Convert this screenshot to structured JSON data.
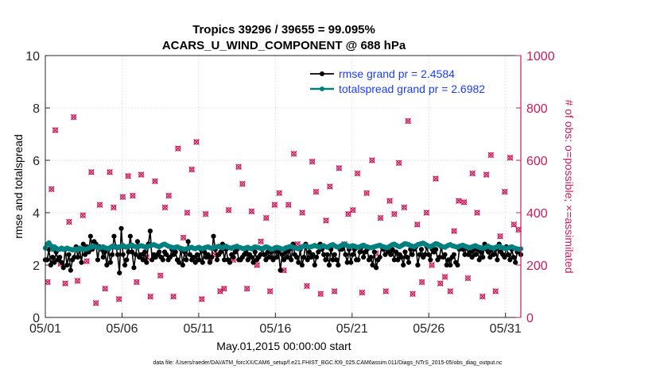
{
  "chart_data": {
    "type": "line",
    "title": "Tropics 39296 / 39655 = 99.095%",
    "subtitle": "ACARS_U_WIND_COMPONENT @ 688 hPa",
    "xlabel": "May.01,2015 00:00:00 start",
    "ylabel": "rmse and totalspread",
    "y2label": "# of obs: o=possible; ×=assimilated",
    "footnote": "data file: /Users/raeder/DAI/ATM_forcXX/CAM6_setup/f.e21.FHIST_BGC.f09_025.CAM6assim.011/Diags_NTrS_2015-05/obs_diag_output.nc",
    "xlim": [
      0,
      31
    ],
    "ylim": [
      0,
      10
    ],
    "y2lim": [
      0,
      1000
    ],
    "x_ticks": [
      0,
      5,
      10,
      15,
      20,
      25,
      30
    ],
    "x_tick_labels": [
      "05/01",
      "05/06",
      "05/11",
      "05/16",
      "05/21",
      "05/26",
      "05/31"
    ],
    "y_ticks": [
      0,
      2,
      4,
      6,
      8,
      10
    ],
    "y_tick_labels": [
      "0",
      "2",
      "4",
      "6",
      "8",
      "10"
    ],
    "y2_ticks": [
      0,
      200,
      400,
      600,
      800,
      1000
    ],
    "y2_tick_labels": [
      "0",
      "200",
      "400",
      "600",
      "800",
      "1000"
    ],
    "legend_position": "top-right",
    "colors": {
      "rmse": "#000000",
      "totalspread": "#008080",
      "obs": "#cc1a5c",
      "legend_text": "#1a3cff"
    },
    "series": [
      {
        "name": "rmse grand pr = 2.4584",
        "values": [
          2.2,
          2.2,
          2.6,
          2.0,
          2.3,
          2.1,
          2.5,
          2.2,
          2.3,
          2.1,
          1.9,
          2.6,
          2.0,
          2.4,
          1.8,
          2.2,
          2.3,
          2.7,
          2.3,
          2.6,
          2.1,
          2.8,
          2.4,
          2.7,
          2.5,
          3.1,
          2.6,
          2.9,
          2.8,
          2.2,
          2.7,
          2.6,
          2.3,
          2.5,
          2.0,
          2.6,
          2.1,
          2.4,
          3.1,
          2.7,
          2.4,
          1.7,
          3.4,
          2.4,
          2.0,
          2.2,
          2.5,
          3.1,
          2.5,
          1.9,
          2.4,
          2.9,
          2.3,
          2.4,
          2.2,
          2.5,
          2.1,
          2.8,
          3.3,
          2.2,
          2.4,
          2.3,
          2.4,
          2.5,
          2.3,
          2.2,
          2.5,
          2.4,
          2.2,
          2.3,
          2.6,
          2.4,
          2.5,
          2.2,
          2.1,
          2.6,
          2.0,
          2.5,
          2.2,
          2.9,
          2.4,
          2.2,
          2.3,
          2.1,
          2.4,
          2.2,
          2.6,
          2.1,
          2.5,
          2.3,
          2.4,
          2.1,
          2.3,
          3.1,
          2.6,
          2.2,
          2.4,
          2.5,
          2.8,
          2.2,
          2.6,
          2.2,
          2.1,
          2.4,
          2.3,
          2.5,
          2.6,
          2.2,
          2.2,
          2.3,
          2.4,
          2.5,
          2.2,
          2.4,
          2.3,
          2.1,
          2.5,
          2.2,
          2.3,
          2.4,
          2.6,
          2.4,
          2.2,
          2.5,
          2.3,
          2.5,
          2.2,
          2.6,
          2.3,
          2.5,
          1.8,
          2.4,
          2.2,
          2.5,
          2.3,
          2.6,
          2.2,
          2.8,
          2.4,
          2.3,
          2.1,
          2.6,
          2.0,
          2.3,
          2.8,
          2.2,
          2.5,
          2.3,
          2.4,
          2.0,
          2.3,
          2.5,
          2.8,
          2.6,
          2.4,
          2.2,
          2.4,
          2.0,
          2.6,
          2.2,
          2.4,
          2.2,
          2.0,
          2.6,
          2.6,
          2.8,
          2.4,
          2.1,
          2.6,
          2.1,
          2.4,
          2.6,
          2.2,
          2.2,
          2.5,
          2.7,
          2.3,
          2.5,
          2.6,
          2.2,
          2.3,
          2.0,
          2.5,
          1.9,
          2.2,
          2.3,
          2.7,
          2.6,
          2.4,
          2.6,
          2.5,
          2.4,
          2.6,
          2.2,
          2.5,
          2.2,
          2.4,
          2.3,
          2.0,
          2.5,
          2.3,
          2.1,
          2.6,
          2.4,
          2.6,
          2.7,
          2.0,
          2.4,
          2.6,
          2.3,
          2.4,
          2.7,
          2.4,
          2.2,
          2.6,
          2.5,
          2.6,
          2.2,
          2.3,
          2.7,
          2.3,
          2.4,
          2.0,
          2.2,
          2.0,
          2.3,
          2.4,
          2.1,
          2.0,
          2.6,
          2.7,
          2.6,
          2.4,
          2.7,
          2.4,
          2.5,
          2.3,
          2.6,
          2.4,
          2.6,
          2.2,
          2.5,
          2.3,
          2.8,
          2.6,
          2.5,
          2.3,
          2.6,
          2.4,
          2.6,
          2.2,
          2.8,
          2.5,
          2.4,
          2.3,
          2.7,
          2.4,
          2.2,
          2.6,
          2.3,
          2.1,
          2.5,
          2.6,
          2.4
        ]
      },
      {
        "name": "totalspread grand pr = 2.6982",
        "values": [
          2.65,
          2.8,
          2.85,
          2.75,
          2.6,
          2.7,
          2.65,
          2.6,
          2.6,
          2.65,
          2.6,
          2.62,
          2.65,
          2.62,
          2.6,
          2.58,
          2.6,
          2.62,
          2.6,
          2.65,
          2.6,
          2.62,
          2.6,
          2.62,
          2.65,
          2.68,
          2.7,
          2.72,
          2.7,
          2.68,
          2.65,
          2.67,
          2.7,
          2.66,
          2.64,
          2.62,
          2.68,
          2.72,
          2.7,
          2.68,
          2.66,
          2.7,
          2.72,
          2.75,
          2.7,
          2.68,
          2.72,
          2.74,
          2.76,
          2.72,
          2.7,
          2.68,
          2.72,
          2.74,
          2.72,
          2.7,
          2.68,
          2.72,
          2.74,
          2.76,
          2.78,
          2.75,
          2.72,
          2.7,
          2.74,
          2.78,
          2.8,
          2.76,
          2.72,
          2.7,
          2.68,
          2.66,
          2.68,
          2.7,
          2.66,
          2.64,
          2.62,
          2.6,
          2.62,
          2.64,
          2.66,
          2.68,
          2.64,
          2.62,
          2.66,
          2.68,
          2.64,
          2.62,
          2.66,
          2.68,
          2.7,
          2.66,
          2.64,
          2.66,
          2.68,
          2.7,
          2.72,
          2.68,
          2.66,
          2.7,
          2.72,
          2.68,
          2.66,
          2.64,
          2.68,
          2.7,
          2.72,
          2.68,
          2.66,
          2.64,
          2.62,
          2.66,
          2.68,
          2.64,
          2.62,
          2.66,
          2.7,
          2.68,
          2.66,
          2.64,
          2.62,
          2.66,
          2.7,
          2.68,
          2.64,
          2.6,
          2.62,
          2.66,
          2.68,
          2.66,
          2.64,
          2.6,
          2.62,
          2.66,
          2.68,
          2.7,
          2.72,
          2.68,
          2.66,
          2.64,
          2.62,
          2.66,
          2.7,
          2.72,
          2.74,
          2.7,
          2.68,
          2.7,
          2.72,
          2.75,
          2.72,
          2.7,
          2.68,
          2.72,
          2.74,
          2.7,
          2.68,
          2.72,
          2.76,
          2.78,
          2.74,
          2.7,
          2.68,
          2.72,
          2.76,
          2.8,
          2.78,
          2.74,
          2.7,
          2.72,
          2.74,
          2.72,
          2.7,
          2.68,
          2.7,
          2.74,
          2.76,
          2.72,
          2.7,
          2.68,
          2.66,
          2.68,
          2.7,
          2.72,
          2.74,
          2.76,
          2.72,
          2.7,
          2.68,
          2.66,
          2.7,
          2.74,
          2.78,
          2.8,
          2.76,
          2.72,
          2.7,
          2.74,
          2.78,
          2.82,
          2.8,
          2.78,
          2.74,
          2.72,
          2.7,
          2.74,
          2.78,
          2.8,
          2.82,
          2.84,
          2.8,
          2.76,
          2.72,
          2.7,
          2.74,
          2.78,
          2.82,
          2.8,
          2.76,
          2.72,
          2.7,
          2.68,
          2.72,
          2.76,
          2.78,
          2.74,
          2.72,
          2.7,
          2.68,
          2.72,
          2.74,
          2.76,
          2.72,
          2.7,
          2.68,
          2.66,
          2.7,
          2.72,
          2.74,
          2.7,
          2.68,
          2.66,
          2.64,
          2.66,
          2.7,
          2.72,
          2.68,
          2.66,
          2.64,
          2.68,
          2.7,
          2.72,
          2.68,
          2.66,
          2.64,
          2.62,
          2.66,
          2.68,
          2.7,
          2.66,
          2.64,
          2.62,
          2.6,
          2.62
        ]
      }
    ],
    "obs_series": {
      "name": "# of obs",
      "axis": "right",
      "x": [
        0.15,
        0.4,
        0.65,
        1.0,
        1.3,
        1.55,
        1.85,
        2.1,
        2.45,
        2.7,
        3.0,
        3.3,
        3.55,
        3.9,
        4.2,
        4.45,
        4.8,
        5.05,
        5.4,
        5.7,
        5.95,
        6.25,
        6.6,
        6.85,
        7.15,
        7.5,
        7.8,
        8.05,
        8.35,
        8.65,
        9.0,
        9.25,
        9.55,
        9.85,
        10.2,
        10.45,
        10.75,
        11.05,
        11.4,
        11.65,
        11.95,
        12.25,
        12.6,
        12.85,
        13.15,
        13.45,
        13.8,
        14.05,
        14.4,
        14.65,
        14.95,
        15.25,
        15.55,
        15.85,
        16.2,
        16.45,
        16.75,
        17.05,
        17.4,
        17.65,
        17.95,
        18.3,
        18.55,
        18.85,
        19.15,
        19.5,
        19.75,
        20.05,
        20.35,
        20.65,
        20.95,
        21.3,
        21.55,
        21.85,
        22.2,
        22.45,
        22.75,
        23.05,
        23.4,
        23.65,
        23.95,
        24.25,
        24.55,
        24.85,
        25.2,
        25.45,
        25.75,
        26.05,
        26.4,
        26.65,
        26.95,
        27.3,
        27.55,
        27.85,
        28.15,
        28.5,
        28.75,
        29.05,
        29.35,
        29.65,
        29.95,
        30.3,
        30.55,
        30.85
      ],
      "values": [
        135,
        490,
        715,
        205,
        130,
        365,
        765,
        140,
        390,
        215,
        555,
        55,
        430,
        110,
        555,
        420,
        70,
        460,
        540,
        465,
        135,
        545,
        230,
        80,
        520,
        160,
        420,
        465,
        80,
        645,
        305,
        400,
        565,
        670,
        70,
        395,
        225,
        240,
        100,
        110,
        410,
        220,
        575,
        510,
        110,
        405,
        200,
        290,
        380,
        100,
        430,
        475,
        180,
        430,
        625,
        280,
        400,
        120,
        595,
        480,
        90,
        370,
        500,
        100,
        570,
        280,
        395,
        410,
        550,
        95,
        475,
        600,
        245,
        380,
        100,
        445,
        395,
        590,
        420,
        750,
        90,
        355,
        135,
        400,
        200,
        530,
        130,
        155,
        100,
        330,
        445,
        440,
        150,
        550,
        400,
        80,
        545,
        620,
        100,
        310,
        480,
        610,
        355,
        335
      ]
    }
  }
}
